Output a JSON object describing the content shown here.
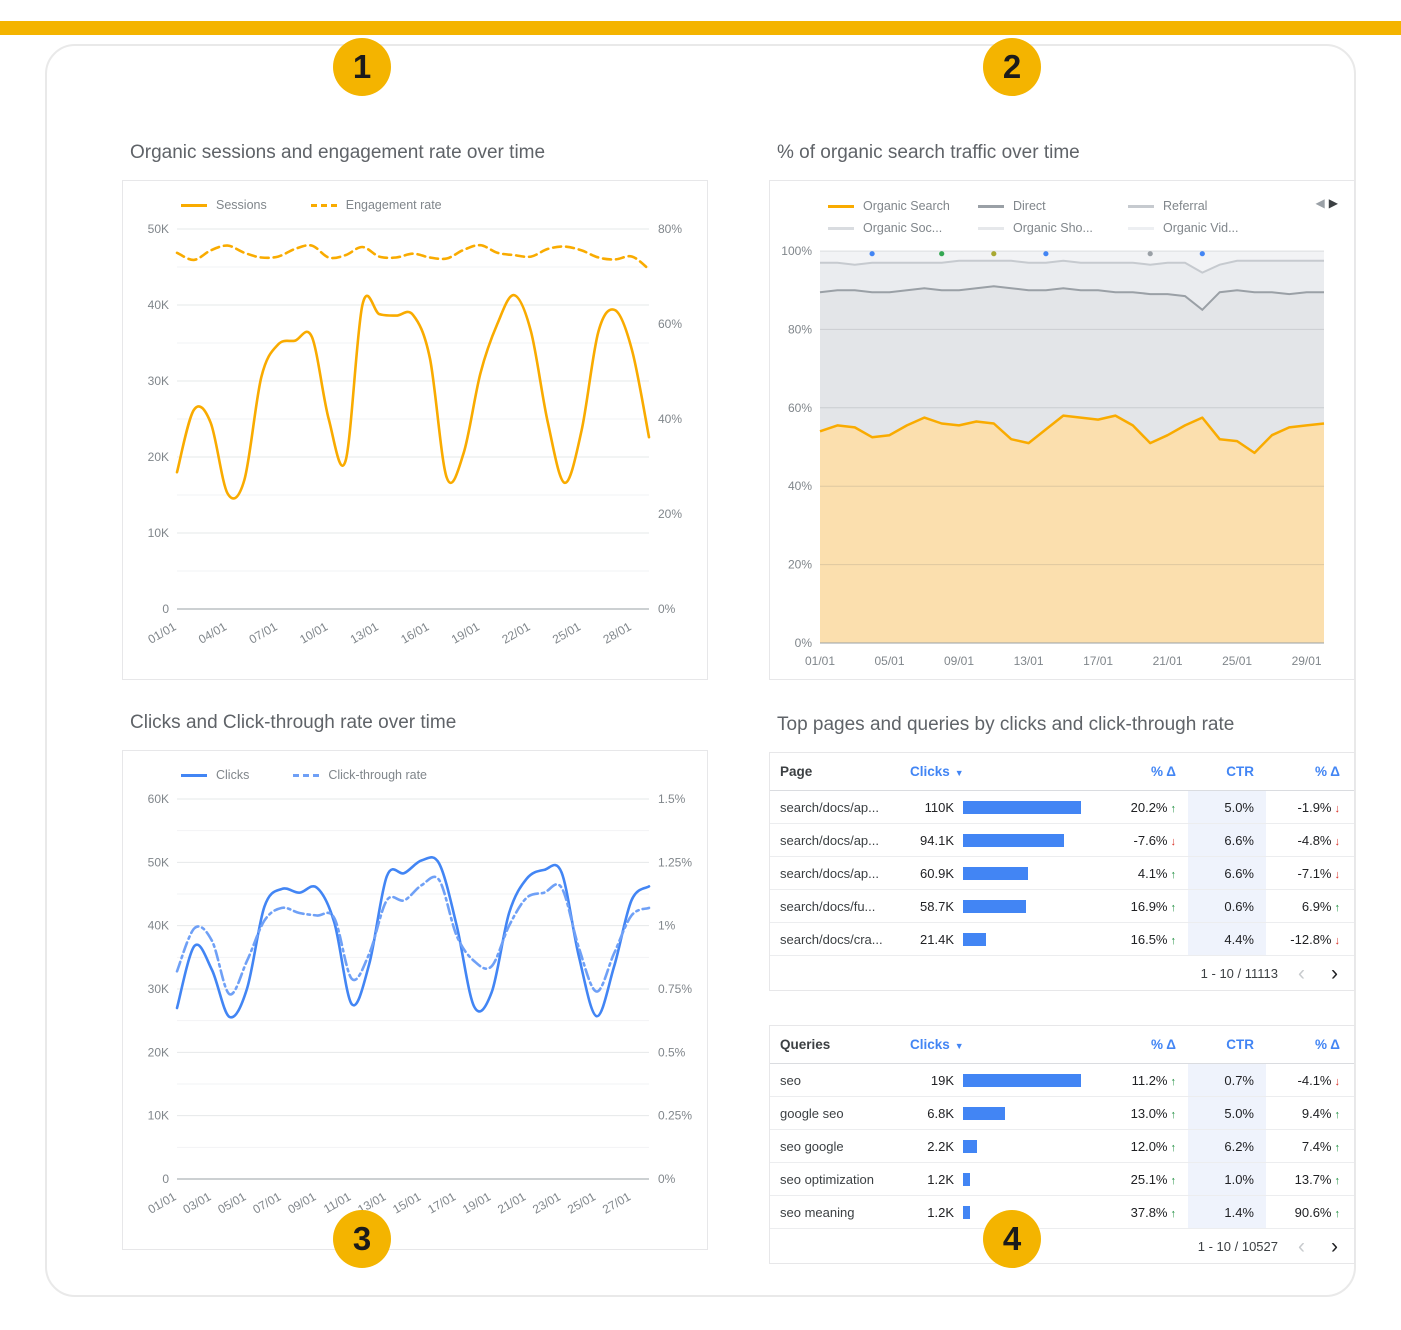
{
  "colors": {
    "accent_yellow": "#F4B400",
    "orange": "#F9AB00",
    "orange_area_fill": "#FBDFAE",
    "blue": "#4285F4",
    "blue_light": "#6FA0F6",
    "green_up": "#1E8E3E",
    "red_down": "#D93025",
    "gray_direct_line": "#9AA0A6",
    "gray_referral_line": "#C6CACF"
  },
  "badges": [
    "1",
    "2",
    "3",
    "4"
  ],
  "panel1": {
    "title": "Organic sessions and engagement rate over time",
    "legend": [
      {
        "label": "Sessions",
        "style": "solid",
        "color": "#F9AB00"
      },
      {
        "label": "Engagement rate",
        "style": "dashed",
        "color": "#F9AB00"
      }
    ]
  },
  "panel2": {
    "title": "% of organic search traffic over time",
    "legend_row1": [
      {
        "label": "Organic Search",
        "color": "#F9AB00"
      },
      {
        "label": "Direct",
        "color": "#9AA0A6"
      },
      {
        "label": "Referral",
        "color": "#C6CACF"
      }
    ],
    "legend_row2": [
      {
        "label": "Organic Soc...",
        "color": "#D9DCE0"
      },
      {
        "label": "Organic Sho...",
        "color": "#E6E8EB"
      },
      {
        "label": "Organic Vid...",
        "color": "#EDEFF2"
      }
    ],
    "prev_arrow": "◀",
    "next_arrow": "▶"
  },
  "panel3": {
    "title": "Clicks and Click-through rate over time",
    "legend": [
      {
        "label": "Clicks",
        "style": "solid",
        "color": "#4285F4"
      },
      {
        "label": "Click-through rate",
        "style": "dashdot",
        "color": "#6FA0F6"
      }
    ]
  },
  "panel4": {
    "title": "Top pages and queries by clicks and click-through rate"
  },
  "chart_data": [
    {
      "id": "sessions-engagement",
      "type": "line",
      "title": "Organic sessions and engagement rate over time",
      "x_tick_labels": [
        "01/01",
        "04/01",
        "07/01",
        "10/01",
        "13/01",
        "16/01",
        "19/01",
        "22/01",
        "25/01",
        "28/01"
      ],
      "x_tick_every": 3,
      "left_axis": {
        "ticks": [
          "0",
          "10K",
          "20K",
          "30K",
          "40K",
          "50K"
        ],
        "max": 50,
        "unit": "K sessions"
      },
      "right_axis": {
        "ticks": [
          "0%",
          "20%",
          "40%",
          "60%",
          "80%"
        ],
        "max": 80,
        "unit": "%"
      },
      "series": [
        {
          "name": "Sessions",
          "axis": "left",
          "style": "solid",
          "color": "#F9AB00",
          "values": [
            18,
            26.2,
            24.5,
            15.2,
            17,
            30.5,
            34.8,
            35.3,
            35.8,
            25,
            19.5,
            40,
            38.8,
            38.6,
            38.7,
            33,
            17.3,
            20.5,
            31,
            37.5,
            41.3,
            36.5,
            24.5,
            16.6,
            23.5,
            36.5,
            39.3,
            34,
            22.6
          ]
        },
        {
          "name": "Engagement rate",
          "axis": "right",
          "style": "dashed",
          "color": "#F9AB00",
          "values": [
            75,
            73.5,
            75.5,
            76.5,
            75,
            74,
            74.2,
            75.8,
            76.5,
            74,
            74.5,
            76.2,
            74.2,
            74,
            74.8,
            74,
            73.8,
            75.6,
            76.6,
            75,
            74.5,
            74.2,
            75.8,
            76.3,
            75.5,
            74,
            73.6,
            74.2,
            71.5
          ]
        }
      ]
    },
    {
      "id": "organic-traffic-share",
      "type": "area",
      "subtype": "stacked-100",
      "title": "% of organic search traffic over time",
      "x_tick_labels": [
        "01/01",
        "05/01",
        "09/01",
        "13/01",
        "17/01",
        "21/01",
        "25/01",
        "29/01"
      ],
      "x_tick_every": 4,
      "y_ticks": [
        "0%",
        "20%",
        "40%",
        "60%",
        "80%",
        "100%"
      ],
      "ylim": [
        0,
        100
      ],
      "series_boundaries": {
        "organic_search": [
          54,
          55.5,
          55,
          52.5,
          53,
          55.5,
          57.5,
          56,
          55.5,
          56.5,
          56,
          52,
          51,
          54.5,
          58,
          57.5,
          57,
          58,
          55.5,
          51,
          53,
          55.5,
          57.5,
          52,
          51.5,
          48.5,
          53,
          55,
          55.5,
          56
        ],
        "direct_top": [
          89.5,
          90,
          90,
          89.5,
          89.5,
          90,
          90.5,
          90,
          90,
          90.5,
          91,
          90.5,
          90,
          90,
          90.5,
          90,
          90,
          89.5,
          89.5,
          89,
          89,
          88.5,
          85,
          89.5,
          90,
          89.5,
          89.5,
          89,
          89.5,
          89.5
        ],
        "referral_top": [
          97,
          97,
          96.5,
          97,
          97,
          97,
          97,
          97,
          97.5,
          97.5,
          97.5,
          97.5,
          97,
          97,
          97.5,
          97,
          97,
          97,
          97,
          96.5,
          97,
          97,
          94.5,
          96.5,
          97.5,
          97.5,
          97.5,
          97.5,
          97.5,
          97.5
        ]
      },
      "fills": {
        "organic": "#FBDFAE",
        "direct": "#E3E5E8",
        "referral": "#EAECEF",
        "other": "#F2F3F5"
      },
      "markers": [
        {
          "index": 3,
          "color": "#4285F4"
        },
        {
          "index": 7,
          "color": "#34A853"
        },
        {
          "index": 10,
          "color": "#A8A832"
        },
        {
          "index": 13,
          "color": "#4285F4"
        },
        {
          "index": 19,
          "color": "#9AA0A6"
        },
        {
          "index": 22,
          "color": "#4285F4"
        }
      ]
    },
    {
      "id": "clicks-ctr",
      "type": "line",
      "title": "Clicks and Click-through rate over time",
      "x_tick_labels": [
        "01/01",
        "03/01",
        "05/01",
        "07/01",
        "09/01",
        "11/01",
        "13/01",
        "15/01",
        "17/01",
        "19/01",
        "21/01",
        "23/01",
        "25/01",
        "27/01"
      ],
      "x_tick_every": 2,
      "left_axis": {
        "ticks": [
          "0",
          "10K",
          "20K",
          "30K",
          "40K",
          "50K",
          "60K"
        ],
        "max": 60,
        "unit": "K clicks"
      },
      "right_axis": {
        "ticks": [
          "0%",
          "0.25%",
          "0.5%",
          "0.75%",
          "1%",
          "1.25%",
          "1.5%"
        ],
        "max": 1.5,
        "unit": "%"
      },
      "series": [
        {
          "name": "Clicks",
          "axis": "left",
          "style": "solid",
          "color": "#4285F4",
          "values": [
            27,
            36.8,
            33,
            25.6,
            30,
            43,
            45.8,
            45.2,
            46,
            40.5,
            27.6,
            34,
            47.8,
            48.3,
            50.3,
            49.8,
            40,
            27.2,
            29.5,
            42,
            47.4,
            48.8,
            48.4,
            35,
            25.7,
            33.5,
            44,
            46.2
          ]
        },
        {
          "name": "Click-through rate",
          "axis": "right",
          "style": "dashdot",
          "color": "#6FA0F6",
          "values": [
            0.82,
            0.99,
            0.94,
            0.73,
            0.86,
            1.02,
            1.07,
            1.05,
            1.04,
            1.03,
            0.79,
            0.89,
            1.1,
            1.1,
            1.16,
            1.18,
            0.96,
            0.86,
            0.84,
            1.0,
            1.11,
            1.13,
            1.15,
            0.91,
            0.74,
            0.89,
            1.04,
            1.07
          ]
        }
      ]
    },
    {
      "id": "top-pages",
      "type": "table",
      "columns": [
        "Page",
        "Clicks",
        "% Δ",
        "CTR",
        "% Δ"
      ],
      "sorted_by": "Clicks",
      "sort_caret": "▼",
      "rows": [
        {
          "label": "search/docs/ap...",
          "clicks_label": "110K",
          "clicks": 110,
          "delta": "20.2%",
          "delta_dir": "up",
          "ctr": "5.0%",
          "ctr_delta": "-1.9%",
          "ctr_delta_dir": "down"
        },
        {
          "label": "search/docs/ap...",
          "clicks_label": "94.1K",
          "clicks": 94.1,
          "delta": "-7.6%",
          "delta_dir": "down",
          "ctr": "6.6%",
          "ctr_delta": "-4.8%",
          "ctr_delta_dir": "down"
        },
        {
          "label": "search/docs/ap...",
          "clicks_label": "60.9K",
          "clicks": 60.9,
          "delta": "4.1%",
          "delta_dir": "up",
          "ctr": "6.6%",
          "ctr_delta": "-7.1%",
          "ctr_delta_dir": "down"
        },
        {
          "label": "search/docs/fu...",
          "clicks_label": "58.7K",
          "clicks": 58.7,
          "delta": "16.9%",
          "delta_dir": "up",
          "ctr": "0.6%",
          "ctr_delta": "6.9%",
          "ctr_delta_dir": "up"
        },
        {
          "label": "search/docs/cra...",
          "clicks_label": "21.4K",
          "clicks": 21.4,
          "delta": "16.5%",
          "delta_dir": "up",
          "ctr": "4.4%",
          "ctr_delta": "-12.8%",
          "ctr_delta_dir": "down"
        }
      ],
      "max_clicks": 110,
      "pagination": "1 - 10 / 11113",
      "prev_glyph": "‹",
      "next_glyph": "›"
    },
    {
      "id": "top-queries",
      "type": "table",
      "columns": [
        "Queries",
        "Clicks",
        "% Δ",
        "CTR",
        "% Δ"
      ],
      "sorted_by": "Clicks",
      "sort_caret": "▼",
      "rows": [
        {
          "label": "seo",
          "clicks_label": "19K",
          "clicks": 19,
          "delta": "11.2%",
          "delta_dir": "up",
          "ctr": "0.7%",
          "ctr_delta": "-4.1%",
          "ctr_delta_dir": "down"
        },
        {
          "label": "google seo",
          "clicks_label": "6.8K",
          "clicks": 6.8,
          "delta": "13.0%",
          "delta_dir": "up",
          "ctr": "5.0%",
          "ctr_delta": "9.4%",
          "ctr_delta_dir": "up"
        },
        {
          "label": "seo google",
          "clicks_label": "2.2K",
          "clicks": 2.2,
          "delta": "12.0%",
          "delta_dir": "up",
          "ctr": "6.2%",
          "ctr_delta": "7.4%",
          "ctr_delta_dir": "up"
        },
        {
          "label": "seo optimization",
          "clicks_label": "1.2K",
          "clicks": 1.2,
          "delta": "25.1%",
          "delta_dir": "up",
          "ctr": "1.0%",
          "ctr_delta": "13.7%",
          "ctr_delta_dir": "up"
        },
        {
          "label": "seo meaning",
          "clicks_label": "1.2K",
          "clicks": 1.2,
          "delta": "37.8%",
          "delta_dir": "up",
          "ctr": "1.4%",
          "ctr_delta": "90.6%",
          "ctr_delta_dir": "up"
        }
      ],
      "max_clicks": 19,
      "pagination": "1 - 10 / 10527",
      "prev_glyph": "‹",
      "next_glyph": "›"
    }
  ]
}
